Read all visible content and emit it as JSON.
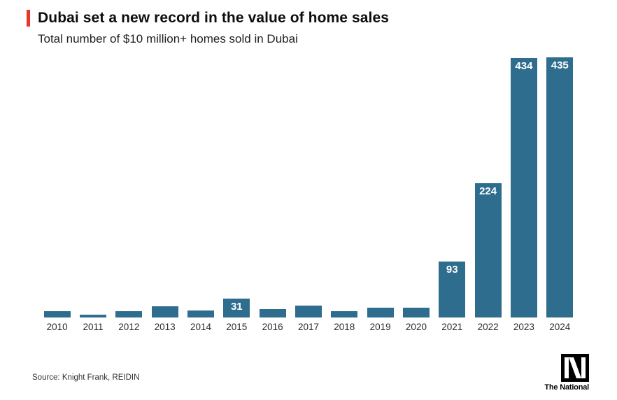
{
  "header": {
    "title": "Dubai set a new record in the value of home sales",
    "subtitle": "Total number of $10 million+ homes sold in Dubai"
  },
  "chart_data": {
    "type": "bar",
    "title": "Dubai set a new record in the value of home sales",
    "subtitle": "Total number of $10 million+ homes sold in Dubai",
    "xlabel": "",
    "ylabel": "",
    "ylim": [
      0,
      435
    ],
    "grid": false,
    "legend": "none",
    "bar_color": "#2e6d8e",
    "categories": [
      "2010",
      "2011",
      "2012",
      "2013",
      "2014",
      "2015",
      "2016",
      "2017",
      "2018",
      "2019",
      "2020",
      "2021",
      "2022",
      "2023",
      "2024"
    ],
    "values": [
      11,
      5,
      11,
      19,
      12,
      31,
      14,
      20,
      10,
      16,
      16,
      93,
      224,
      434,
      435
    ],
    "points": [
      {
        "year": "2010",
        "value": 11,
        "label": ""
      },
      {
        "year": "2011",
        "value": 5,
        "label": ""
      },
      {
        "year": "2012",
        "value": 11,
        "label": ""
      },
      {
        "year": "2013",
        "value": 19,
        "label": ""
      },
      {
        "year": "2014",
        "value": 12,
        "label": ""
      },
      {
        "year": "2015",
        "value": 31,
        "label": "31"
      },
      {
        "year": "2016",
        "value": 14,
        "label": ""
      },
      {
        "year": "2017",
        "value": 20,
        "label": ""
      },
      {
        "year": "2018",
        "value": 10,
        "label": ""
      },
      {
        "year": "2019",
        "value": 16,
        "label": ""
      },
      {
        "year": "2020",
        "value": 16,
        "label": ""
      },
      {
        "year": "2021",
        "value": 93,
        "label": "93"
      },
      {
        "year": "2022",
        "value": 224,
        "label": "224"
      },
      {
        "year": "2023",
        "value": 434,
        "label": "434"
      },
      {
        "year": "2024",
        "value": 435,
        "label": "435"
      }
    ]
  },
  "footer": {
    "source": "Source: Knight Frank, REIDIN",
    "brand": "The National"
  },
  "colors": {
    "bar": "#2e6d8e",
    "accent_red": "#e8362d",
    "bar_label_text": "#ffffff"
  }
}
